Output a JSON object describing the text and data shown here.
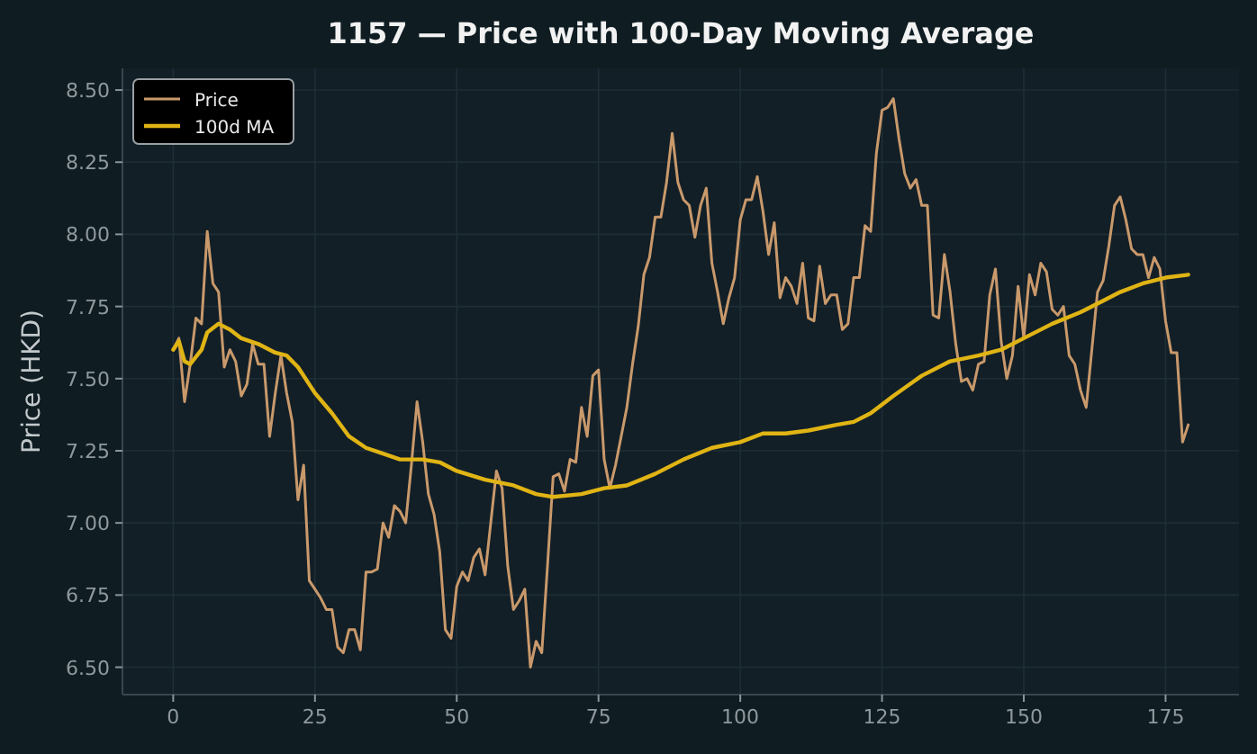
{
  "chart_data": {
    "type": "line",
    "title": "1157 — Price with 100-Day Moving Average",
    "ylabel": "Price (HKD)",
    "xlim": [
      -8.95,
      187.95
    ],
    "xticks": [
      0,
      25,
      50,
      75,
      100,
      125,
      150,
      175
    ],
    "ylim": [
      6.405,
      8.575
    ],
    "yticks": [
      {
        "value": 6.5,
        "label": "6.50"
      },
      {
        "value": 6.75,
        "label": "6.75"
      },
      {
        "value": 7.0,
        "label": "7.00"
      },
      {
        "value": 7.25,
        "label": "7.25"
      },
      {
        "value": 7.5,
        "label": "7.50"
      },
      {
        "value": 7.75,
        "label": "7.75"
      },
      {
        "value": 8.0,
        "label": "8.00"
      },
      {
        "value": 8.25,
        "label": "8.25"
      },
      {
        "value": 8.5,
        "label": "8.50"
      }
    ],
    "grid": true,
    "legend": "top left",
    "series": [
      {
        "name": "Price",
        "color": "#c9996b",
        "x": [
          0,
          1,
          2,
          3,
          4,
          5,
          6,
          7,
          8,
          9,
          10,
          11,
          12,
          13,
          14,
          15,
          16,
          17,
          18,
          19,
          20,
          21,
          22,
          23,
          24,
          25,
          26,
          27,
          28,
          29,
          30,
          31,
          32,
          33,
          34,
          35,
          36,
          37,
          38,
          39,
          40,
          41,
          42,
          43,
          44,
          45,
          46,
          47,
          48,
          49,
          50,
          51,
          52,
          53,
          54,
          55,
          56,
          57,
          58,
          59,
          60,
          61,
          62,
          63,
          64,
          65,
          66,
          67,
          68,
          69,
          70,
          71,
          72,
          73,
          74,
          75,
          76,
          77,
          78,
          79,
          80,
          81,
          82,
          83,
          84,
          85,
          86,
          87,
          88,
          89,
          90,
          91,
          92,
          93,
          94,
          95,
          96,
          97,
          98,
          99,
          100,
          101,
          102,
          103,
          104,
          105,
          106,
          107,
          108,
          109,
          110,
          111,
          112,
          113,
          114,
          115,
          116,
          117,
          118,
          119,
          120,
          121,
          122,
          123,
          124,
          125,
          126,
          127,
          128,
          129,
          130,
          131,
          132,
          133,
          134,
          135,
          136,
          137,
          138,
          139,
          140,
          141,
          142,
          143,
          144,
          145,
          146,
          147,
          148,
          149,
          150,
          151,
          152,
          153,
          154,
          155,
          156,
          157,
          158,
          159,
          160,
          161,
          162,
          163,
          164,
          165,
          166,
          167,
          168,
          169,
          170,
          171,
          172,
          173,
          174,
          175,
          176,
          177,
          178,
          179
        ],
        "values": [
          7.6,
          7.64,
          7.42,
          7.55,
          7.71,
          7.69,
          8.01,
          7.83,
          7.8,
          7.54,
          7.6,
          7.56,
          7.44,
          7.48,
          7.62,
          7.55,
          7.55,
          7.3,
          7.45,
          7.58,
          7.45,
          7.35,
          7.08,
          7.2,
          6.8,
          6.77,
          6.74,
          6.7,
          6.7,
          6.57,
          6.55,
          6.63,
          6.63,
          6.56,
          6.83,
          6.83,
          6.84,
          7.0,
          6.95,
          7.06,
          7.04,
          7.0,
          7.2,
          7.42,
          7.28,
          7.1,
          7.03,
          6.9,
          6.63,
          6.6,
          6.78,
          6.83,
          6.8,
          6.88,
          6.91,
          6.82,
          7.0,
          7.18,
          7.12,
          6.85,
          6.7,
          6.73,
          6.77,
          6.5,
          6.59,
          6.55,
          6.85,
          7.16,
          7.17,
          7.11,
          7.22,
          7.21,
          7.4,
          7.3,
          7.51,
          7.53,
          7.22,
          7.12,
          7.2,
          7.3,
          7.4,
          7.55,
          7.68,
          7.86,
          7.92,
          8.06,
          8.06,
          8.18,
          8.35,
          8.18,
          8.12,
          8.1,
          7.99,
          8.1,
          8.16,
          7.9,
          7.8,
          7.69,
          7.78,
          7.85,
          8.05,
          8.12,
          8.12,
          8.2,
          8.08,
          7.93,
          8.04,
          7.78,
          7.85,
          7.82,
          7.76,
          7.9,
          7.71,
          7.7,
          7.89,
          7.76,
          7.79,
          7.79,
          7.67,
          7.69,
          7.85,
          7.85,
          8.03,
          8.01,
          8.28,
          8.43,
          8.44,
          8.47,
          8.33,
          8.21,
          8.16,
          8.19,
          8.1,
          8.1,
          7.72,
          7.71,
          7.93,
          7.8,
          7.62,
          7.49,
          7.5,
          7.46,
          7.55,
          7.56,
          7.79,
          7.88,
          7.63,
          7.5,
          7.58,
          7.82,
          7.64,
          7.86,
          7.79,
          7.9,
          7.87,
          7.74,
          7.72,
          7.75,
          7.58,
          7.55,
          7.46,
          7.4,
          7.6,
          7.8,
          7.84,
          7.96,
          8.1,
          8.13,
          8.05,
          7.95,
          7.93,
          7.93,
          7.85,
          7.92,
          7.88,
          7.7,
          7.59,
          7.59,
          7.28,
          7.34
        ]
      },
      {
        "name": "100d MA",
        "color": "#e0b414",
        "x": [
          0,
          1,
          2,
          3,
          5,
          6,
          8,
          10,
          12,
          15,
          18,
          20,
          22,
          25,
          28,
          31,
          34,
          37,
          40,
          44,
          47,
          50,
          55,
          60,
          64,
          67,
          72,
          76,
          80,
          85,
          90,
          95,
          100,
          104,
          108,
          112,
          117,
          120,
          123,
          127,
          132,
          137,
          142,
          146,
          150,
          155,
          160,
          164,
          167,
          171,
          175,
          179
        ],
        "values": [
          7.6,
          7.63,
          7.56,
          7.55,
          7.6,
          7.66,
          7.69,
          7.67,
          7.64,
          7.62,
          7.59,
          7.58,
          7.54,
          7.45,
          7.38,
          7.3,
          7.26,
          7.24,
          7.22,
          7.22,
          7.21,
          7.18,
          7.15,
          7.13,
          7.1,
          7.09,
          7.1,
          7.12,
          7.13,
          7.17,
          7.22,
          7.26,
          7.28,
          7.31,
          7.31,
          7.32,
          7.34,
          7.35,
          7.38,
          7.44,
          7.51,
          7.56,
          7.58,
          7.6,
          7.64,
          7.69,
          7.73,
          7.77,
          7.8,
          7.83,
          7.85,
          7.86
        ]
      }
    ]
  }
}
